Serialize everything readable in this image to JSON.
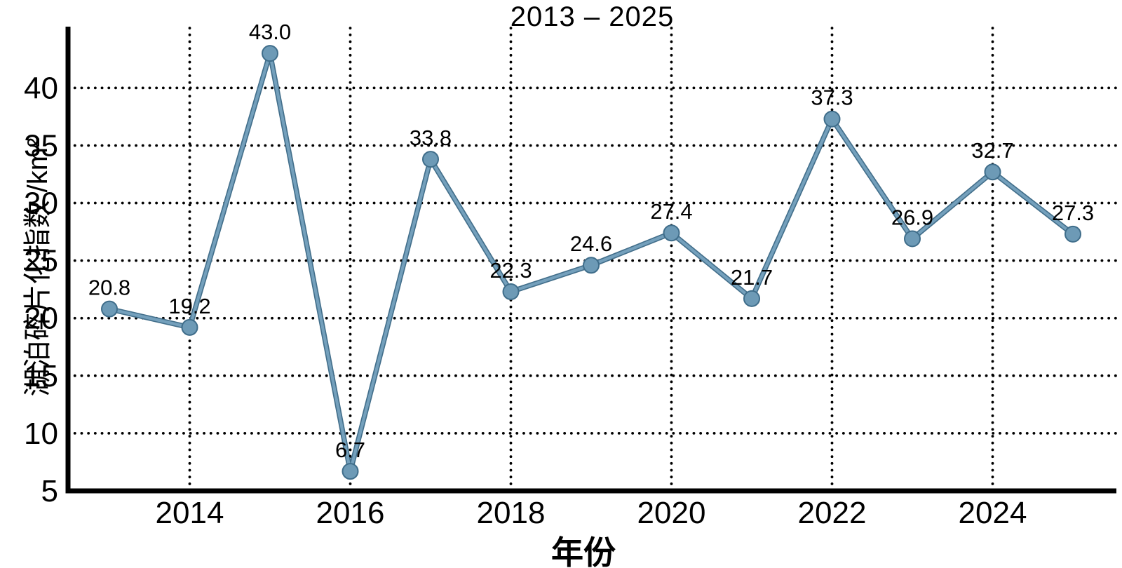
{
  "chart_data": {
    "type": "line",
    "title": "2013 – 2025",
    "xlabel": "年份",
    "ylabel": "湖泊碎片化指数 /km²",
    "x": [
      2013,
      2014,
      2015,
      2016,
      2017,
      2018,
      2019,
      2020,
      2021,
      2022,
      2023,
      2024,
      2025
    ],
    "values": [
      20.8,
      19.2,
      43.0,
      6.7,
      33.8,
      22.3,
      24.6,
      27.4,
      21.7,
      37.3,
      26.9,
      32.7,
      27.3
    ],
    "point_labels": [
      "20.8",
      "19.2",
      "43.0",
      "6.7",
      "33.8",
      "22.3",
      "24.6",
      "27.4",
      "21.7",
      "37.3",
      "26.9",
      "32.7",
      "27.3"
    ],
    "xticks": [
      2014,
      2016,
      2018,
      2020,
      2022,
      2024
    ],
    "yticks": [
      5,
      10,
      15,
      20,
      25,
      30,
      35,
      40
    ],
    "ylim": [
      5,
      45.2
    ],
    "grid": "dotted",
    "legend_position": "none",
    "colors": {
      "line": "#74a0bc",
      "line_edge": "#436f8b",
      "marker_fill": "#6d9ab6",
      "marker_edge": "#3f6d8a",
      "grid": "#000000",
      "axis": "#000000",
      "text": "#000000",
      "background": "#ffffff"
    }
  }
}
